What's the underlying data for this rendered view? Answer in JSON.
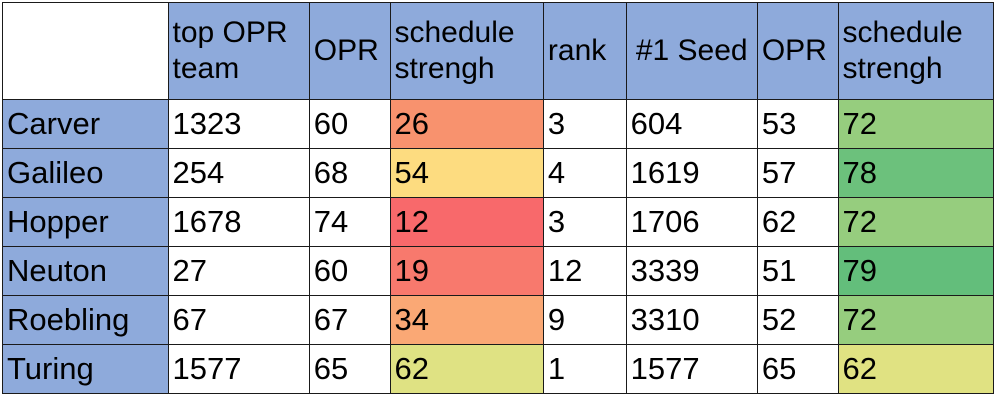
{
  "headers": [
    "",
    "top OPR team",
    "OPR",
    "schedule strengh",
    "rank",
    "#1 Seed",
    "OPR",
    "schedule strengh"
  ],
  "rows": [
    {
      "name": "Carver",
      "top_opr_team": "1323",
      "opr": "60",
      "schedule": "26",
      "rank": "3",
      "seed1": "604",
      "seed_opr": "53",
      "seed_schedule": "72"
    },
    {
      "name": "Galileo",
      "top_opr_team": "254",
      "opr": "68",
      "schedule": "54",
      "rank": "4",
      "seed1": "1619",
      "seed_opr": "57",
      "seed_schedule": "78"
    },
    {
      "name": "Hopper",
      "top_opr_team": "1678",
      "opr": "74",
      "schedule": "12",
      "rank": "3",
      "seed1": "1706",
      "seed_opr": "62",
      "seed_schedule": "72"
    },
    {
      "name": "Neuton",
      "top_opr_team": "27",
      "opr": "60",
      "schedule": "19",
      "rank": "12",
      "seed1": "3339",
      "seed_opr": "51",
      "seed_schedule": "79"
    },
    {
      "name": "Roebling",
      "top_opr_team": "67",
      "opr": "67",
      "schedule": "34",
      "rank": "9",
      "seed1": "3310",
      "seed_opr": "52",
      "seed_schedule": "72"
    },
    {
      "name": "Turing",
      "top_opr_team": "1577",
      "opr": "65",
      "schedule": "62",
      "rank": "1",
      "seed1": "1577",
      "seed_opr": "65",
      "seed_schedule": "62"
    }
  ],
  "colors": {
    "header_blue": "#8eaadb",
    "schedule_fill": [
      "#f8926e",
      "#fddc80",
      "#f8696b",
      "#f8796d",
      "#faa875",
      "#dfe283"
    ],
    "seed_schedule_fill": [
      "#96cd7e",
      "#6cc17c",
      "#96cd7e",
      "#63be7b",
      "#96cd7e",
      "#e0e282"
    ]
  }
}
